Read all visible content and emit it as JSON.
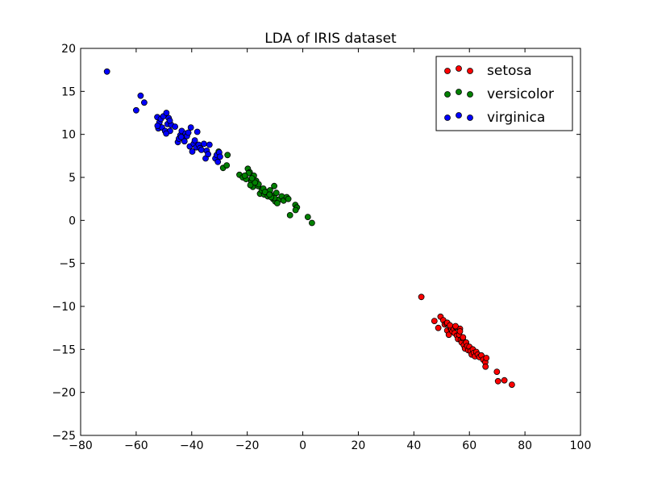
{
  "chart_data": {
    "type": "scatter",
    "title": "LDA of IRIS dataset",
    "xlabel": "",
    "ylabel": "",
    "xlim": [
      -80,
      100
    ],
    "ylim": [
      -25,
      20
    ],
    "xticks": [
      -80,
      -60,
      -40,
      -20,
      0,
      20,
      40,
      60,
      80,
      100
    ],
    "yticks": [
      -25,
      -20,
      -15,
      -10,
      -5,
      0,
      5,
      10,
      15,
      20
    ],
    "xtick_labels": [
      "−80",
      "−60",
      "−40",
      "−20",
      "0",
      "20",
      "40",
      "60",
      "80",
      "100"
    ],
    "ytick_labels": [
      "−25",
      "−20",
      "−15",
      "−10",
      "−5",
      "0",
      "5",
      "10",
      "15",
      "20"
    ],
    "grid": false,
    "legend": "top-right",
    "series": [
      {
        "name": "setosa",
        "color": "#ff0000",
        "x": [
          42.7,
          47.4,
          48.8,
          49.6,
          50.6,
          51.1,
          51.8,
          52.0,
          52.6,
          53.1,
          53.5,
          53.9,
          54.4,
          54.7,
          55.1,
          55.5,
          55.9,
          56.3,
          56.6,
          56.9,
          57.2,
          57.6,
          58.0,
          58.4,
          58.8,
          59.2,
          59.6,
          60.0,
          60.4,
          60.8,
          61.2,
          61.6,
          62.0,
          62.5,
          63.0,
          63.6,
          64.3,
          65.0,
          65.7,
          66.1,
          65.8,
          69.9,
          70.3,
          72.6,
          75.3,
          52.0,
          53.0,
          56.6,
          57.7,
          55.0
        ],
        "y": [
          -8.9,
          -11.7,
          -12.5,
          -11.2,
          -11.6,
          -12.1,
          -12.0,
          -12.8,
          -13.3,
          -12.5,
          -12.7,
          -12.9,
          -12.6,
          -13.1,
          -12.4,
          -13.4,
          -13.8,
          -13.3,
          -12.6,
          -13.9,
          -14.2,
          -13.7,
          -14.5,
          -14.9,
          -14.2,
          -14.6,
          -15.1,
          -14.7,
          -15.2,
          -15.6,
          -15.0,
          -15.4,
          -15.8,
          -15.3,
          -15.6,
          -15.9,
          -15.7,
          -16.2,
          -16.5,
          -16.0,
          -17.0,
          -17.6,
          -18.7,
          -18.6,
          -19.1,
          -11.9,
          -12.2,
          -12.9,
          -13.6,
          -12.3
        ]
      },
      {
        "name": "versicolor",
        "color": "#008000",
        "x": [
          -30.3,
          -27.1,
          -28.7,
          -27.4,
          -22.8,
          -21.6,
          -20.4,
          -19.8,
          -19.1,
          -18.5,
          -18.0,
          -17.6,
          -18.9,
          -19.5,
          -16.6,
          -16.1,
          -15.4,
          -14.8,
          -14.2,
          -13.9,
          -13.0,
          -12.6,
          -12.2,
          -11.8,
          -11.1,
          -10.7,
          -10.3,
          -9.9,
          -9.5,
          -8.6,
          -9.2,
          -7.6,
          -6.9,
          -5.8,
          -5.2,
          -4.6,
          -2.7,
          -2.1,
          -2.6,
          1.8,
          3.3,
          -16.8,
          -15.9,
          -13.6,
          -10.2,
          -11.4,
          -12.0,
          -17.2,
          -18.3,
          -20.9
        ],
        "y": [
          8.0,
          7.6,
          6.1,
          6.4,
          5.3,
          5.0,
          4.8,
          6.0,
          5.6,
          4.5,
          3.9,
          5.2,
          4.1,
          5.5,
          4.3,
          4.0,
          3.1,
          3.5,
          3.7,
          3.0,
          3.3,
          2.8,
          3.1,
          3.5,
          2.9,
          2.5,
          4.0,
          2.2,
          3.2,
          2.4,
          2.0,
          2.8,
          2.3,
          2.7,
          2.5,
          0.6,
          1.8,
          1.5,
          1.2,
          0.4,
          -0.3,
          4.6,
          4.2,
          3.3,
          2.6,
          2.7,
          3.0,
          4.4,
          4.9,
          5.2
        ]
      },
      {
        "name": "virginica",
        "color": "#0000ff",
        "x": [
          -70.5,
          -60.0,
          -58.4,
          -57.1,
          -52.4,
          -52.0,
          -51.6,
          -51.1,
          -50.7,
          -50.2,
          -49.6,
          -49.1,
          -48.7,
          -48.3,
          -47.8,
          -47.4,
          -46.0,
          -45.0,
          -44.6,
          -44.1,
          -43.6,
          -43.1,
          -42.6,
          -42.2,
          -41.7,
          -41.2,
          -40.7,
          -40.3,
          -39.8,
          -39.3,
          -38.9,
          -38.4,
          -38.0,
          -37.5,
          -37.0,
          -36.5,
          -35.6,
          -35.0,
          -34.6,
          -34.1,
          -33.6,
          -31.5,
          -31.0,
          -30.6,
          -30.1,
          -29.8,
          -52.3,
          -49.2,
          -47.9,
          -43.8
        ],
        "y": [
          17.3,
          12.8,
          14.5,
          13.7,
          12.0,
          10.7,
          11.4,
          11.8,
          10.8,
          12.1,
          10.4,
          12.5,
          11.2,
          11.9,
          10.4,
          11.1,
          10.9,
          9.1,
          9.5,
          9.9,
          10.4,
          9.6,
          9.2,
          10.1,
          9.8,
          10.2,
          8.6,
          10.8,
          8.0,
          8.9,
          9.3,
          8.5,
          10.3,
          8.8,
          8.4,
          8.2,
          8.9,
          7.2,
          8.1,
          7.7,
          8.8,
          7.2,
          7.6,
          6.8,
          7.9,
          7.4,
          11.0,
          10.1,
          11.6,
          9.7
        ]
      }
    ]
  }
}
